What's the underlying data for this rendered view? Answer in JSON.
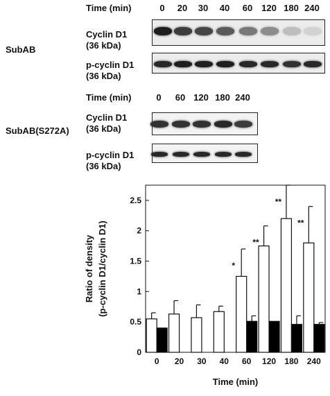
{
  "panel_top": {
    "treatment": "SubAB",
    "time_header": "Time (min)",
    "times": [
      "0",
      "20",
      "30",
      "40",
      "60",
      "120",
      "180",
      "240"
    ],
    "rows": [
      {
        "label": "Cyclin D1",
        "sub": "(36 kDa)"
      },
      {
        "label": "p-cyclin D1",
        "sub": "(36 kDa)"
      }
    ]
  },
  "panel_middle": {
    "treatment": "SubAB(S272A)",
    "time_header": "Time (min)",
    "times": [
      "0",
      "60",
      "120",
      "180",
      "240"
    ],
    "rows": [
      {
        "label": "Cyclin D1",
        "sub": "(36 kDa)"
      },
      {
        "label": "p-cyclin D1",
        "sub": "(36 kDa)"
      }
    ]
  },
  "chart_data": {
    "type": "bar",
    "categories": [
      "0",
      "20",
      "30",
      "40",
      "60",
      "120",
      "180",
      "240"
    ],
    "series": [
      {
        "values": [
          0.55,
          0.63,
          0.57,
          0.67,
          1.25,
          1.75,
          2.2,
          1.8
        ],
        "errors": [
          0.1,
          0.22,
          0.21,
          0.09,
          0.45,
          0.33,
          0.55,
          0.6
        ],
        "color": "#ffffff"
      },
      {
        "values": [
          0.4,
          null,
          null,
          null,
          0.51,
          0.51,
          0.46,
          0.46
        ],
        "errors": [
          0,
          null,
          null,
          null,
          0.09,
          0,
          0.14,
          0.03
        ],
        "color": "#000000"
      }
    ],
    "significance": [
      "",
      "",
      "",
      "",
      "*",
      "**",
      "**",
      "**"
    ],
    "ylim": [
      0,
      2.75
    ],
    "yticks": [
      "0",
      "0.5",
      "1",
      "1.5",
      "2",
      "2.5"
    ],
    "ylabel": "Ratio of density",
    "ylabel2": "(p-cyclin D1/cyclin D1)",
    "xlabel": "Time (min)"
  }
}
